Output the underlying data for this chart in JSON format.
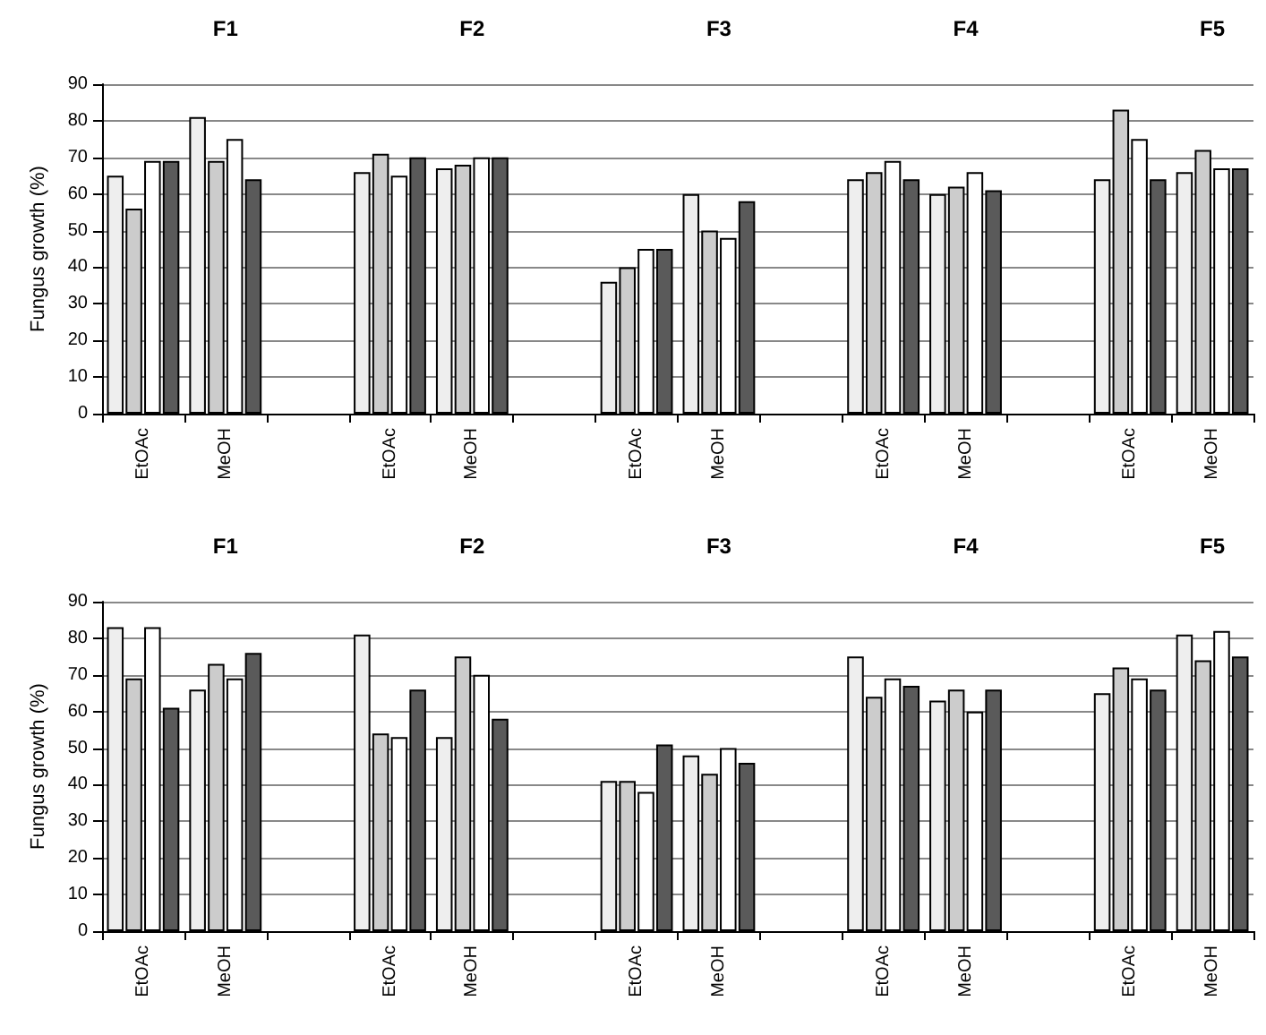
{
  "chart_data": [
    {
      "type": "bar",
      "ylabel": "Fungus growth (%)",
      "annotations": [
        "F1",
        "F2",
        "F3",
        "F4",
        "F5"
      ],
      "categories": [
        "EtOAc",
        "MeOH",
        null,
        "EtOAc",
        "MeOH",
        null,
        "EtOAc",
        "MeOH",
        null,
        "EtOAc",
        "MeOH",
        null,
        "EtOAc",
        "MeOH"
      ],
      "series": [
        {
          "color": "#eeeeee",
          "values": [
            65,
            81,
            null,
            66,
            67,
            null,
            36,
            60,
            null,
            64,
            60,
            null,
            64,
            66
          ]
        },
        {
          "color": "#cccccc",
          "values": [
            56,
            69,
            null,
            71,
            68,
            null,
            40,
            50,
            null,
            66,
            62,
            null,
            83,
            72
          ]
        },
        {
          "color": "#ffffff",
          "values": [
            69,
            75,
            null,
            65,
            70,
            null,
            45,
            48,
            null,
            69,
            66,
            null,
            75,
            67
          ]
        },
        {
          "color": "#5a5a5a",
          "values": [
            69,
            64,
            null,
            70,
            70,
            null,
            45,
            58,
            null,
            64,
            61,
            null,
            64,
            67
          ]
        }
      ],
      "ylim": [
        0,
        90
      ],
      "yticks": [
        0,
        10,
        20,
        30,
        40,
        50,
        60,
        70,
        80,
        90
      ],
      "grid": "y"
    },
    {
      "type": "bar",
      "ylabel": "Fungus growth (%)",
      "annotations": [
        "F1",
        "F2",
        "F3",
        "F4",
        "F5"
      ],
      "categories": [
        "EtOAc",
        "MeOH",
        null,
        "EtOAc",
        "MeOH",
        null,
        "EtOAc",
        "MeOH",
        null,
        "EtOAc",
        "MeOH",
        null,
        "EtOAc",
        "MeOH"
      ],
      "series": [
        {
          "color": "#eeeeee",
          "values": [
            83,
            66,
            null,
            81,
            53,
            null,
            41,
            48,
            null,
            75,
            63,
            null,
            65,
            81
          ]
        },
        {
          "color": "#cccccc",
          "values": [
            69,
            73,
            null,
            54,
            75,
            null,
            41,
            43,
            null,
            64,
            66,
            null,
            72,
            74
          ]
        },
        {
          "color": "#ffffff",
          "values": [
            83,
            69,
            null,
            53,
            70,
            null,
            38,
            50,
            null,
            69,
            60,
            null,
            69,
            82
          ]
        },
        {
          "color": "#5a5a5a",
          "values": [
            61,
            76,
            null,
            66,
            58,
            null,
            51,
            46,
            null,
            67,
            66,
            null,
            66,
            75
          ]
        }
      ],
      "ylim": [
        0,
        90
      ],
      "yticks": [
        0,
        10,
        20,
        30,
        40,
        50,
        60,
        70,
        80,
        90
      ],
      "grid": "y"
    }
  ]
}
